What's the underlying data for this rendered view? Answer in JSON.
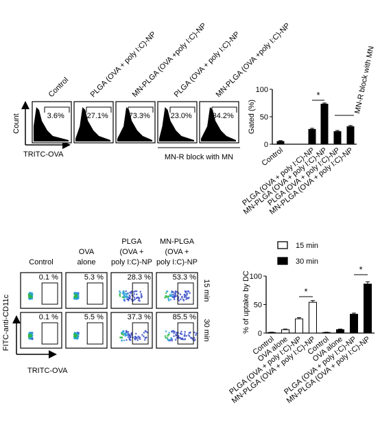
{
  "histogram_panel": {
    "y_label": "Count",
    "x_label": "TRITC-OVA",
    "columns": [
      "Control",
      "PLGA (OVA + poly I:C)-NP",
      "MN-PLGA (OVA +poly I:C)-NP",
      "PLGA (OVA + poly I:C)-NP",
      "MN-PLGA (OVA +poly I:C)-NP"
    ],
    "gates": [
      "3.6%",
      "27.1%",
      "73.3%",
      "23.0%",
      "34.2%"
    ],
    "group_label": "MN-R  block with MN"
  },
  "flow_panel": {
    "y_label": "FITC-anti-CD11c",
    "x_label": "TRITC-OVA",
    "columns": [
      [
        "Control"
      ],
      [
        "OVA",
        "alone"
      ],
      [
        "PLGA",
        "(OVA +",
        "poly I:C)-NP"
      ],
      [
        "MN-PLGA",
        "(OVA +",
        "poly I:C)-NP"
      ]
    ],
    "rows": [
      {
        "label": "15 min",
        "gates": [
          "0.1 %",
          "5.3 %",
          "28.3 %",
          "53.3 %"
        ]
      },
      {
        "label": "30 min",
        "gates": [
          "0.1 %",
          "5.5 %",
          "37.3 %",
          "85.5 %"
        ]
      }
    ]
  },
  "chart_data": [
    {
      "type": "bar",
      "ylabel": "Gated (%)",
      "categories": [
        "Control",
        "PLGA (OVA + poly I:C)-NP",
        "MN-PLGA (OVA + poly I:C)-NP",
        "PLGA (OVA + poly I:C)-NP",
        "MN-PLGA (OVA + poly I:C)-NP"
      ],
      "values": [
        5,
        27,
        73,
        23,
        32
      ],
      "errors": [
        1.5,
        2,
        2,
        2,
        2
      ],
      "color": "#000000",
      "ylim": [
        0,
        100
      ],
      "yticks": [
        0,
        50,
        100
      ],
      "annotations": [
        {
          "text": "*"
        }
      ],
      "group_label": "MN-R  block with MN"
    },
    {
      "type": "bar",
      "ylabel": "% of uptake by DC",
      "categories": [
        "Control",
        "OVA alone",
        "PLGA (OVA + poly I:C)-NP",
        "MN-PLGA (OVA + poly I:C)-NP",
        "Control",
        "OVA alone",
        "PLGA (OVA + poly I:C)-NP",
        "MN-PLGA (OVA + poly I:C)-NP"
      ],
      "series": [
        {
          "name": "15 min",
          "color": "#ffffff",
          "values": [
            1,
            6,
            25,
            54,
            null,
            null,
            null,
            null
          ],
          "errors": [
            0.5,
            1,
            2,
            3,
            null,
            null,
            null,
            null
          ]
        },
        {
          "name": "30 min",
          "color": "#000000",
          "values": [
            null,
            null,
            null,
            null,
            1,
            6,
            33,
            86
          ],
          "errors": [
            null,
            null,
            null,
            null,
            0.5,
            1,
            2,
            4
          ]
        }
      ],
      "ylim": [
        0,
        100
      ],
      "yticks": [
        0,
        50,
        100
      ],
      "annotations": [
        {
          "text": "*"
        },
        {
          "text": "*"
        }
      ]
    }
  ]
}
